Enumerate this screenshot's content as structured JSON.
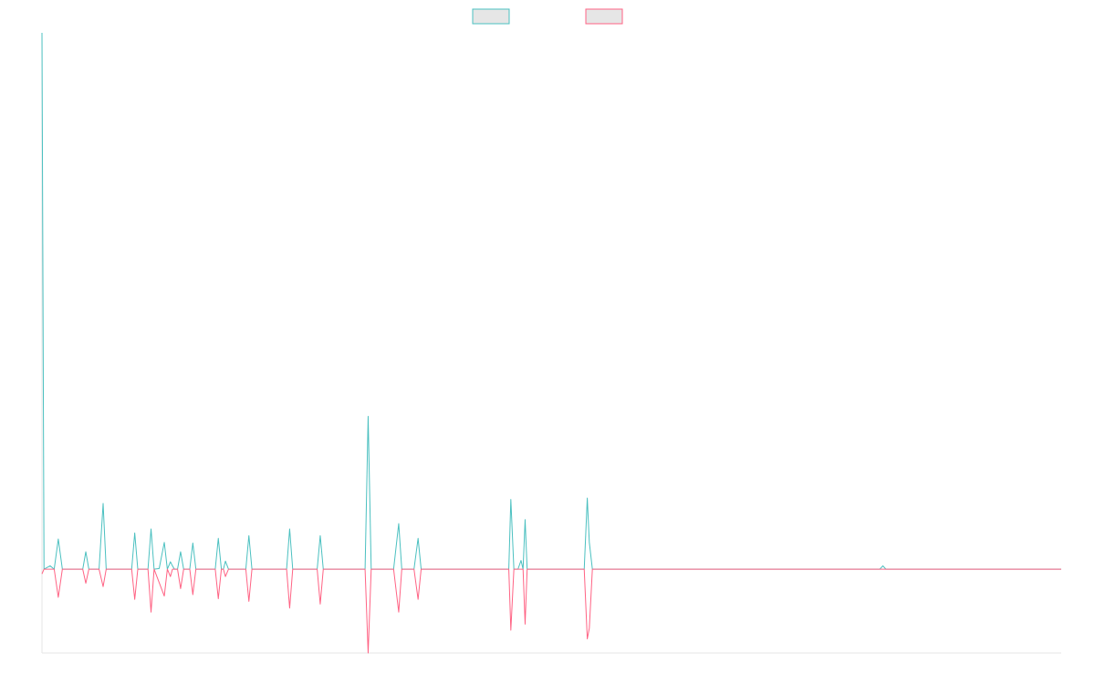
{
  "chart_data": {
    "type": "line",
    "title": "",
    "xlabel": "",
    "ylabel": "",
    "grid": false,
    "legend": "top-center",
    "x_range": [
      0,
      1000
    ],
    "ylim": [
      -12.5,
      80
    ],
    "colors": {
      "series_1": "#4bc0c0",
      "series_2": "#ff6384",
      "legend_fill": "#e6e6e6",
      "axis": "#e5e5e5"
    },
    "series": [
      {
        "color": "#4bc0c0",
        "points": [
          [
            0,
            80
          ],
          [
            2,
            0
          ],
          [
            8,
            0.5
          ],
          [
            12,
            0
          ],
          [
            16,
            4.5
          ],
          [
            20,
            0
          ],
          [
            25,
            0
          ],
          [
            40,
            0
          ],
          [
            43,
            2.6
          ],
          [
            46,
            0
          ],
          [
            56,
            0
          ],
          [
            60,
            9.8
          ],
          [
            63,
            0
          ],
          [
            88,
            0
          ],
          [
            91,
            5.4
          ],
          [
            94,
            0
          ],
          [
            104,
            0
          ],
          [
            107,
            6.0
          ],
          [
            110,
            0
          ],
          [
            115,
            0.1
          ],
          [
            120,
            4.0
          ],
          [
            123,
            0
          ],
          [
            126,
            1.1
          ],
          [
            128,
            0.5
          ],
          [
            130,
            0
          ],
          [
            133,
            0
          ],
          [
            136,
            2.6
          ],
          [
            139,
            0
          ],
          [
            145,
            0
          ],
          [
            148,
            3.9
          ],
          [
            151,
            0
          ],
          [
            170,
            0
          ],
          [
            173,
            4.6
          ],
          [
            176,
            0
          ],
          [
            178,
            0
          ],
          [
            180,
            1.2
          ],
          [
            183,
            0
          ],
          [
            186,
            0
          ],
          [
            200,
            0
          ],
          [
            203,
            5.0
          ],
          [
            206,
            0
          ],
          [
            240,
            0
          ],
          [
            243,
            6.0
          ],
          [
            246,
            0
          ],
          [
            270,
            0
          ],
          [
            273,
            5.0
          ],
          [
            276,
            0
          ],
          [
            317,
            0
          ],
          [
            320,
            22.8
          ],
          [
            323,
            0
          ],
          [
            345,
            0
          ],
          [
            350,
            6.8
          ],
          [
            353,
            0
          ],
          [
            365,
            0
          ],
          [
            369,
            4.6
          ],
          [
            372,
            0
          ],
          [
            458,
            0
          ],
          [
            460,
            10.4
          ],
          [
            463,
            0
          ],
          [
            467,
            0
          ],
          [
            470,
            1.3
          ],
          [
            472,
            0
          ],
          [
            474,
            7.4
          ],
          [
            476,
            0
          ],
          [
            484,
            0
          ],
          [
            488,
            0
          ],
          [
            532,
            0
          ],
          [
            535,
            10.6
          ],
          [
            537,
            4.0
          ],
          [
            540,
            0
          ],
          [
            822,
            0
          ],
          [
            825,
            0.5
          ],
          [
            828,
            0
          ],
          [
            1000,
            0
          ]
        ]
      },
      {
        "color": "#ff6384",
        "points": [
          [
            0,
            -0.7
          ],
          [
            2,
            0
          ],
          [
            8,
            0
          ],
          [
            12,
            0
          ],
          [
            16,
            -4.2
          ],
          [
            20,
            0
          ],
          [
            25,
            0
          ],
          [
            40,
            0
          ],
          [
            43,
            -2.1
          ],
          [
            46,
            0
          ],
          [
            56,
            0
          ],
          [
            60,
            -2.6
          ],
          [
            63,
            0
          ],
          [
            88,
            0
          ],
          [
            91,
            -4.5
          ],
          [
            94,
            0
          ],
          [
            104,
            0
          ],
          [
            107,
            -6.4
          ],
          [
            110,
            0
          ],
          [
            120,
            -4.0
          ],
          [
            123,
            0
          ],
          [
            126,
            -1.1
          ],
          [
            128,
            0
          ],
          [
            133,
            0
          ],
          [
            136,
            -2.9
          ],
          [
            139,
            0
          ],
          [
            145,
            0
          ],
          [
            148,
            -3.8
          ],
          [
            151,
            0
          ],
          [
            170,
            0
          ],
          [
            173,
            -4.4
          ],
          [
            176,
            0
          ],
          [
            178,
            0
          ],
          [
            180,
            -1.1
          ],
          [
            183,
            0
          ],
          [
            186,
            0
          ],
          [
            200,
            0
          ],
          [
            203,
            -4.8
          ],
          [
            206,
            0
          ],
          [
            240,
            0
          ],
          [
            243,
            -5.8
          ],
          [
            246,
            0
          ],
          [
            270,
            0
          ],
          [
            273,
            -5.2
          ],
          [
            276,
            0
          ],
          [
            317,
            0
          ],
          [
            320,
            -12.5
          ],
          [
            323,
            0
          ],
          [
            345,
            0
          ],
          [
            350,
            -6.4
          ],
          [
            353,
            0
          ],
          [
            365,
            0
          ],
          [
            369,
            -4.5
          ],
          [
            372,
            0
          ],
          [
            458,
            0
          ],
          [
            460,
            -9.1
          ],
          [
            463,
            0
          ],
          [
            467,
            0
          ],
          [
            470,
            0
          ],
          [
            472,
            0
          ],
          [
            474,
            -8.2
          ],
          [
            476,
            0
          ],
          [
            484,
            0
          ],
          [
            488,
            0
          ],
          [
            532,
            0
          ],
          [
            535,
            -10.4
          ],
          [
            537,
            -8.8
          ],
          [
            540,
            0
          ],
          [
            1000,
            0
          ]
        ]
      }
    ],
    "legend_items": [
      {
        "color": "#4bc0c0",
        "label": ""
      },
      {
        "color": "#ff6384",
        "label": ""
      }
    ]
  }
}
